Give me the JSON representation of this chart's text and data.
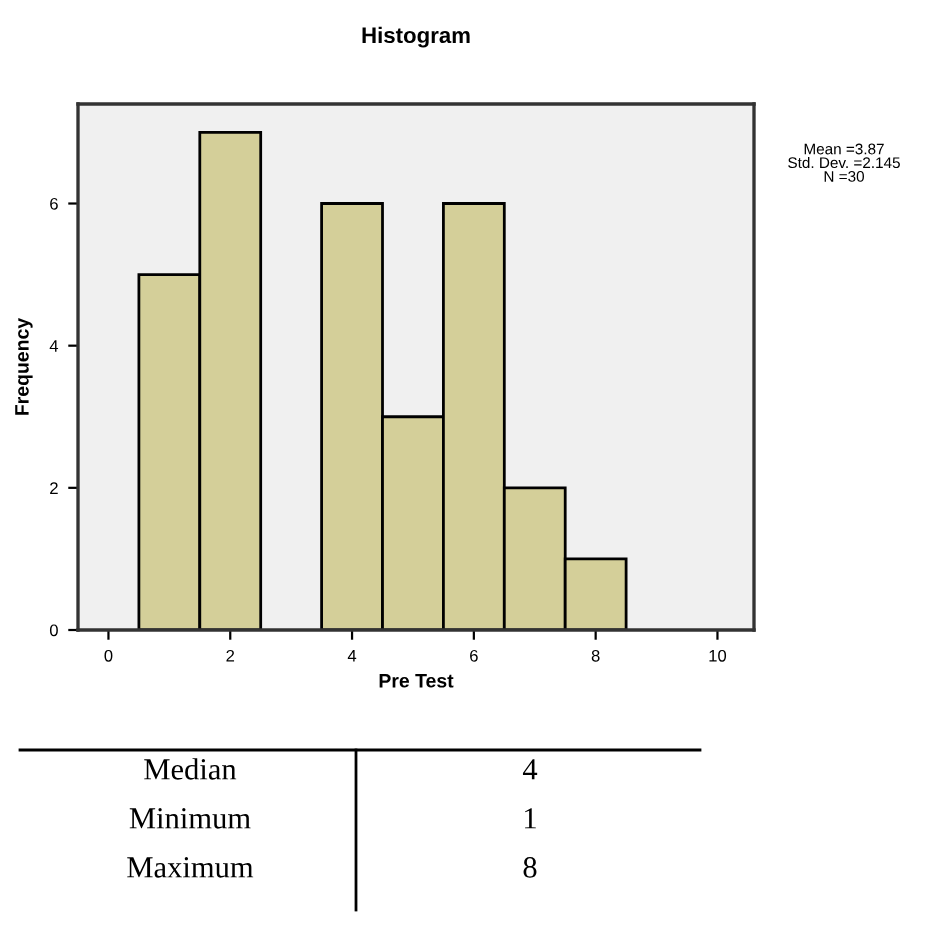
{
  "chart_data": {
    "type": "histogram",
    "title": "Histogram",
    "xlabel": "Pre Test",
    "ylabel": "Frequency",
    "bins": [
      0.5,
      1.5,
      2.5,
      3.5,
      4.5,
      5.5,
      6.5,
      7.5,
      8.5
    ],
    "values": [
      5,
      7,
      0,
      6,
      3,
      6,
      2,
      1
    ],
    "color": "#d4cf99",
    "xlim": [
      -0.5,
      10.6
    ],
    "xticks": [
      0,
      2,
      4,
      6,
      8,
      10
    ],
    "ylim": [
      0,
      7.4
    ],
    "yticks": [
      0,
      2,
      4,
      6
    ],
    "grid": false,
    "legend": false,
    "annotations": [
      "Mean =3.87\nStd. Dev. =2.145\nN =30",
      "Median",
      "4",
      "Minimum",
      "1",
      "Maximum",
      "8"
    ]
  }
}
